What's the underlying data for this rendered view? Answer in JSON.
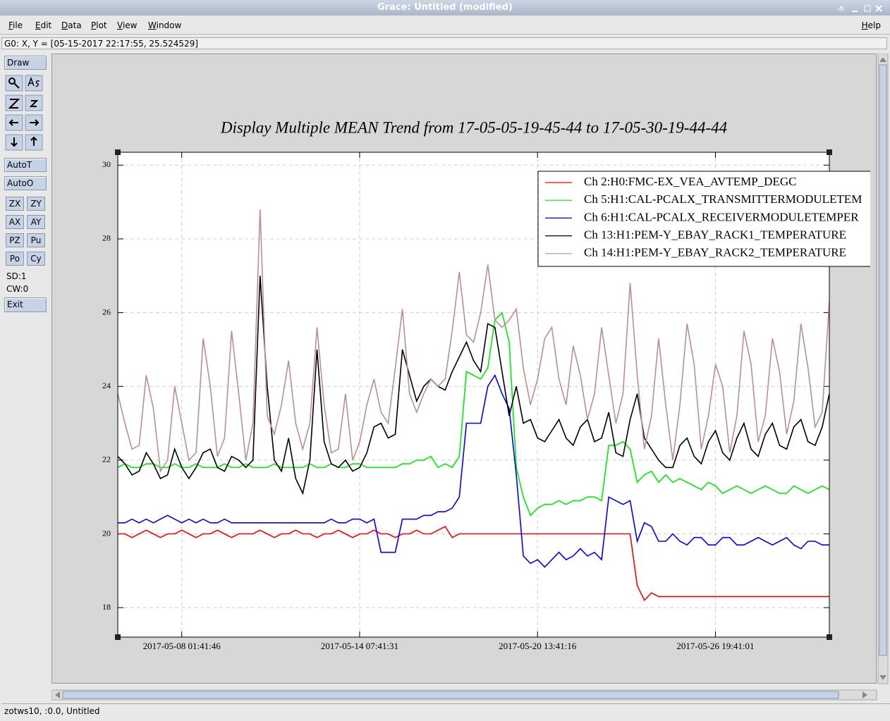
{
  "window": {
    "title": "Grace: Untitled (modified)"
  },
  "menu": {
    "items": [
      "File",
      "Edit",
      "Data",
      "Plot",
      "View",
      "Window"
    ],
    "help": "Help"
  },
  "locator": "G0: X, Y = [05-15-2017 22:17:55, 25.524529]",
  "toolbar": {
    "draw": "Draw",
    "auto": [
      "AutoT",
      "AutoO"
    ],
    "buttons": [
      "ZX",
      "ZY",
      "AX",
      "AY",
      "PZ",
      "Pu",
      "Po",
      "Cy"
    ],
    "sd": "SD:1",
    "cw": "CW:0",
    "exit": "Exit"
  },
  "status": "zotws10, :0.0, Untitled",
  "chart_data": {
    "type": "line",
    "title": "Display Multiple MEAN Trend from 17-05-05-19-45-44 to 17-05-30-19-44-44",
    "x": [
      "2017-05-05 19:45:44",
      "2017-05-06 01:45:44",
      "2017-05-06 07:45:44",
      "2017-05-06 13:45:44",
      "2017-05-06 19:45:44",
      "2017-05-07 01:45:44",
      "2017-05-07 07:45:44",
      "2017-05-07 13:45:44",
      "2017-05-07 19:45:44",
      "2017-05-08 01:45:44",
      "2017-05-08 07:45:44",
      "2017-05-08 13:45:44",
      "2017-05-08 19:45:44",
      "2017-05-09 01:45:44",
      "2017-05-09 07:45:44",
      "2017-05-09 13:45:44",
      "2017-05-09 19:45:44",
      "2017-05-10 01:45:44",
      "2017-05-10 07:45:44",
      "2017-05-10 13:45:44",
      "2017-05-10 19:45:44",
      "2017-05-11 01:45:44",
      "2017-05-11 07:45:44",
      "2017-05-11 13:45:44",
      "2017-05-11 19:45:44",
      "2017-05-12 01:45:44",
      "2017-05-12 07:45:44",
      "2017-05-12 13:45:44",
      "2017-05-12 19:45:44",
      "2017-05-13 01:45:44",
      "2017-05-13 07:45:44",
      "2017-05-13 13:45:44",
      "2017-05-13 19:45:44",
      "2017-05-14 01:45:44",
      "2017-05-14 07:45:44",
      "2017-05-14 13:45:44",
      "2017-05-14 19:45:44",
      "2017-05-15 01:45:44",
      "2017-05-15 07:45:44",
      "2017-05-15 13:45:44",
      "2017-05-15 19:45:44",
      "2017-05-16 01:45:44",
      "2017-05-16 07:45:44",
      "2017-05-16 13:45:44",
      "2017-05-16 19:45:44",
      "2017-05-17 01:45:44",
      "2017-05-17 07:45:44",
      "2017-05-17 13:45:44",
      "2017-05-17 19:45:44",
      "2017-05-18 01:45:44",
      "2017-05-18 07:45:44",
      "2017-05-18 13:45:44",
      "2017-05-18 19:45:44",
      "2017-05-19 01:45:44",
      "2017-05-19 07:45:44",
      "2017-05-19 13:45:44",
      "2017-05-19 19:45:44",
      "2017-05-20 01:45:44",
      "2017-05-20 07:45:44",
      "2017-05-20 13:45:44",
      "2017-05-20 19:45:44",
      "2017-05-21 01:45:44",
      "2017-05-21 07:45:44",
      "2017-05-21 13:45:44",
      "2017-05-21 19:45:44",
      "2017-05-22 01:45:44",
      "2017-05-22 07:45:44",
      "2017-05-22 13:45:44",
      "2017-05-22 19:45:44",
      "2017-05-23 01:45:44",
      "2017-05-23 07:45:44",
      "2017-05-23 13:45:44",
      "2017-05-23 19:45:44",
      "2017-05-24 01:45:44",
      "2017-05-24 07:45:44",
      "2017-05-24 13:45:44",
      "2017-05-24 19:45:44",
      "2017-05-25 01:45:44",
      "2017-05-25 07:45:44",
      "2017-05-25 13:45:44",
      "2017-05-25 19:45:44",
      "2017-05-26 01:45:44",
      "2017-05-26 07:45:44",
      "2017-05-26 13:45:44",
      "2017-05-26 19:45:44",
      "2017-05-27 01:45:44",
      "2017-05-27 07:45:44",
      "2017-05-27 13:45:44",
      "2017-05-27 19:45:44",
      "2017-05-28 01:45:44",
      "2017-05-28 07:45:44",
      "2017-05-28 13:45:44",
      "2017-05-28 19:45:44",
      "2017-05-29 01:45:44",
      "2017-05-29 07:45:44",
      "2017-05-29 13:45:44",
      "2017-05-29 19:45:44",
      "2017-05-30 01:45:44",
      "2017-05-30 07:45:44",
      "2017-05-30 13:45:44",
      "2017-05-30 19:44:44"
    ],
    "xlim": [
      "2017-05-05 19:45:44",
      "2017-05-30 19:44:44"
    ],
    "xticks": [
      "2017-05-08 01:41:46",
      "2017-05-14 07:41:31",
      "2017-05-20 13:41:16",
      "2017-05-26 19:41:01"
    ],
    "ylim": [
      17.2,
      30.35
    ],
    "yticks": [
      18,
      20,
      22,
      24,
      26,
      28,
      30
    ],
    "grid": true,
    "legend": "top-right",
    "series": [
      {
        "name": "Ch 2:H0:FMC-EX_VEA_AVTEMP_DEGC",
        "color": "#ff0000",
        "values": [
          20.0,
          20.0,
          19.9,
          20.0,
          20.1,
          20.0,
          19.9,
          20.0,
          20.0,
          20.1,
          20.0,
          19.9,
          20.0,
          20.0,
          20.1,
          20.0,
          19.9,
          20.0,
          20.0,
          20.0,
          20.1,
          20.0,
          19.9,
          20.0,
          20.0,
          20.1,
          20.0,
          20.0,
          19.9,
          20.0,
          20.0,
          20.1,
          20.0,
          19.9,
          20.0,
          20.0,
          20.1,
          20.0,
          20.0,
          19.9,
          20.0,
          20.0,
          20.1,
          20.0,
          20.0,
          20.1,
          20.2,
          19.9,
          20.0,
          20.0,
          20.0,
          20.0,
          20.0,
          20.0,
          20.0,
          20.0,
          20.0,
          20.0,
          20.0,
          20.0,
          20.0,
          20.0,
          20.0,
          20.0,
          20.0,
          20.0,
          20.0,
          20.0,
          20.0,
          20.0,
          20.0,
          20.0,
          20.0,
          18.6,
          18.2,
          18.4,
          18.3,
          18.3,
          18.3,
          18.3,
          18.3,
          18.3,
          18.3,
          18.3,
          18.3,
          18.3,
          18.3,
          18.3,
          18.3,
          18.3,
          18.3,
          18.3,
          18.3,
          18.3,
          18.3,
          18.3,
          18.3,
          18.3,
          18.3,
          18.3,
          18.3
        ]
      },
      {
        "name": "Ch 5:H1:CAL-PCALX_TRANSMITTERMODULETEM",
        "color": "#00ee00",
        "values": [
          21.8,
          21.9,
          21.8,
          21.8,
          21.9,
          21.9,
          21.8,
          21.8,
          21.9,
          21.8,
          21.8,
          21.9,
          21.8,
          21.8,
          21.8,
          21.9,
          21.8,
          21.8,
          21.9,
          21.8,
          21.8,
          21.8,
          21.9,
          21.8,
          21.8,
          21.8,
          21.8,
          21.9,
          21.8,
          21.8,
          21.9,
          21.8,
          21.8,
          21.9,
          21.9,
          21.8,
          21.8,
          21.8,
          21.8,
          21.8,
          21.9,
          21.9,
          22.0,
          22.0,
          22.1,
          21.8,
          21.9,
          21.8,
          22.1,
          24.4,
          24.3,
          24.2,
          24.5,
          25.8,
          26.0,
          25.2,
          21.8,
          21.0,
          20.5,
          20.7,
          20.8,
          20.8,
          20.9,
          20.8,
          20.9,
          20.9,
          21.0,
          21.0,
          20.9,
          22.4,
          22.4,
          22.5,
          22.3,
          21.4,
          21.6,
          21.7,
          21.4,
          21.6,
          21.4,
          21.5,
          21.4,
          21.3,
          21.2,
          21.4,
          21.3,
          21.1,
          21.2,
          21.3,
          21.2,
          21.1,
          21.2,
          21.3,
          21.2,
          21.1,
          21.1,
          21.3,
          21.2,
          21.1,
          21.2,
          21.3,
          21.2
        ]
      },
      {
        "name": "Ch 6:H1:CAL-PCALX_RECEIVERMODULETEMPER",
        "color": "#0000ff",
        "values": [
          20.3,
          20.3,
          20.4,
          20.3,
          20.4,
          20.3,
          20.4,
          20.5,
          20.4,
          20.3,
          20.4,
          20.3,
          20.4,
          20.3,
          20.3,
          20.4,
          20.3,
          20.3,
          20.3,
          20.3,
          20.3,
          20.3,
          20.3,
          20.3,
          20.3,
          20.3,
          20.3,
          20.3,
          20.3,
          20.3,
          20.4,
          20.3,
          20.3,
          20.4,
          20.4,
          20.3,
          20.4,
          19.5,
          19.5,
          19.5,
          20.4,
          20.4,
          20.4,
          20.5,
          20.5,
          20.6,
          20.6,
          20.7,
          21.0,
          23.0,
          23.0,
          23.0,
          24.0,
          24.3,
          23.8,
          23.4,
          21.6,
          19.4,
          19.2,
          19.3,
          19.1,
          19.3,
          19.5,
          19.3,
          19.4,
          19.6,
          19.4,
          19.5,
          19.3,
          21.0,
          20.9,
          20.8,
          20.9,
          19.8,
          20.3,
          20.2,
          19.8,
          19.8,
          20.0,
          19.8,
          19.7,
          19.9,
          19.9,
          19.7,
          19.7,
          19.9,
          19.9,
          19.7,
          19.7,
          19.8,
          19.9,
          19.8,
          19.7,
          19.8,
          19.9,
          19.7,
          19.6,
          19.8,
          19.8,
          19.7,
          19.7
        ]
      },
      {
        "name": "Ch 13:H1:PEM-Y_EBAY_RACK1_TEMPERATURE",
        "color": "#000000",
        "values": [
          22.1,
          21.9,
          21.6,
          21.7,
          22.2,
          21.9,
          21.5,
          21.6,
          22.3,
          21.8,
          21.5,
          21.8,
          22.2,
          22.3,
          21.8,
          21.7,
          22.1,
          22.0,
          21.8,
          22.0,
          27.0,
          24.0,
          22.0,
          21.7,
          22.6,
          21.5,
          21.1,
          22.0,
          25.0,
          22.5,
          21.9,
          21.8,
          22.0,
          21.7,
          21.8,
          22.2,
          22.9,
          23.0,
          22.6,
          22.7,
          25.0,
          24.3,
          23.6,
          24.0,
          24.2,
          24.0,
          23.9,
          24.4,
          24.8,
          25.2,
          24.7,
          24.4,
          25.7,
          25.6,
          24.4,
          23.2,
          24.0,
          23.0,
          23.1,
          22.6,
          22.5,
          22.8,
          23.1,
          22.6,
          22.4,
          22.9,
          23.1,
          22.5,
          22.6,
          23.3,
          22.2,
          22.1,
          23.1,
          23.8,
          22.6,
          22.3,
          22.0,
          21.8,
          21.8,
          22.4,
          22.6,
          22.1,
          21.9,
          22.5,
          22.8,
          22.2,
          22.0,
          22.6,
          23.0,
          22.3,
          22.1,
          22.7,
          23.0,
          22.4,
          22.3,
          22.9,
          23.1,
          22.5,
          22.4,
          22.9,
          23.8
        ]
      },
      {
        "name": "Ch 14:H1:PEM-Y_EBAY_RACK2_TEMPERATURE",
        "color": "#bc8f8f",
        "values": [
          23.8,
          23.0,
          22.3,
          22.4,
          24.3,
          23.4,
          21.7,
          22.0,
          24.0,
          23.0,
          22.0,
          22.2,
          25.3,
          24.0,
          22.1,
          22.6,
          25.5,
          23.8,
          22.0,
          23.0,
          28.8,
          23.2,
          22.7,
          23.5,
          24.7,
          23.0,
          22.3,
          23.0,
          25.6,
          23.5,
          22.2,
          22.3,
          23.8,
          22.0,
          22.5,
          23.5,
          24.2,
          23.3,
          23.0,
          24.5,
          26.1,
          23.8,
          23.3,
          23.8,
          24.2,
          24.0,
          24.2,
          25.5,
          27.1,
          25.4,
          25.2,
          26.0,
          27.3,
          25.8,
          25.6,
          25.8,
          26.1,
          24.5,
          23.5,
          24.2,
          25.3,
          25.6,
          24.2,
          23.5,
          25.1,
          24.3,
          23.1,
          23.8,
          25.6,
          24.3,
          23.0,
          23.8,
          26.8,
          24.3,
          22.3,
          23.2,
          25.3,
          23.5,
          22.0,
          23.5,
          25.7,
          24.6,
          22.3,
          23.2,
          24.6,
          24.0,
          22.2,
          23.2,
          25.5,
          24.6,
          22.5,
          23.2,
          25.3,
          24.4,
          22.7,
          23.6,
          25.7,
          24.5,
          22.9,
          23.3,
          26.3
        ]
      }
    ]
  }
}
